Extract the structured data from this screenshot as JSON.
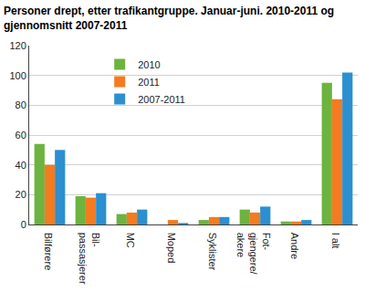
{
  "chart_data": {
    "type": "bar",
    "title": "Personer drept, etter trafikantgruppe. Januar-juni. 2010-2011 og\ngjennomsnitt 2007-2011",
    "categories": [
      "Bilførere",
      "Bil-\npassasjerer",
      "MC",
      "Moped",
      "Syklister",
      "Fot-\ngjengere/\nakere",
      "Andre",
      "I alt"
    ],
    "series": [
      {
        "name": "2010",
        "color": "#6db33f",
        "values": [
          54,
          19,
          7,
          0,
          3,
          10,
          2,
          95
        ]
      },
      {
        "name": "2011",
        "color": "#f47b20",
        "values": [
          40,
          18,
          8,
          3,
          5,
          8,
          2,
          84
        ]
      },
      {
        "name": "2007-2011",
        "color": "#2b8fd0",
        "values": [
          50,
          21,
          10,
          1,
          5,
          12,
          3,
          102
        ]
      }
    ],
    "ylim": [
      0,
      120
    ],
    "yticks": [
      0,
      20,
      40,
      60,
      80,
      100,
      120
    ],
    "grid": true,
    "legend": "top"
  }
}
